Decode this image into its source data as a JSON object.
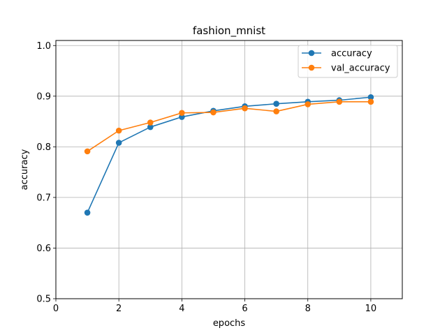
{
  "chart_data": {
    "type": "line",
    "title": "fashion_mnist",
    "xlabel": "epochs",
    "ylabel": "accuracy",
    "xlim": [
      0,
      11
    ],
    "ylim": [
      0.5,
      1.01
    ],
    "xticks": [
      0,
      2,
      4,
      6,
      8,
      10
    ],
    "yticks": [
      0.5,
      0.6,
      0.7,
      0.8,
      0.9,
      1.0
    ],
    "xtick_labels": [
      "0",
      "2",
      "4",
      "6",
      "8",
      "10"
    ],
    "ytick_labels": [
      "0.5",
      "0.6",
      "0.7",
      "0.8",
      "0.9",
      "1.0"
    ],
    "grid": true,
    "legend_position": "top-right",
    "x": [
      1,
      2,
      3,
      4,
      5,
      6,
      7,
      8,
      9,
      10
    ],
    "series": [
      {
        "name": "accuracy",
        "color": "#1f77b4",
        "values": [
          0.67,
          0.808,
          0.839,
          0.859,
          0.871,
          0.88,
          0.885,
          0.889,
          0.892,
          0.898
        ]
      },
      {
        "name": "val_accuracy",
        "color": "#ff7f0e",
        "values": [
          0.791,
          0.832,
          0.848,
          0.867,
          0.868,
          0.876,
          0.87,
          0.884,
          0.889,
          0.889
        ]
      }
    ]
  }
}
